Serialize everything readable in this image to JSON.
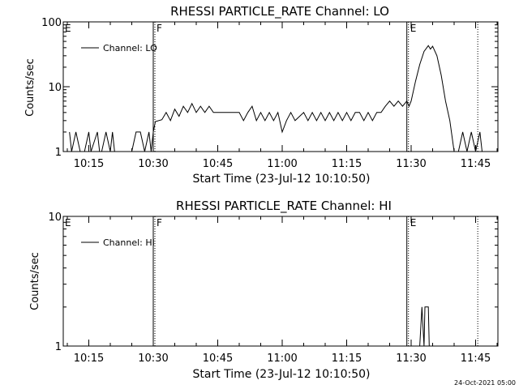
{
  "chart_data": [
    {
      "type": "line",
      "title": "RHESSI PARTICLE_RATE Channel: LO",
      "xlabel": "Start Time (23-Jul-12 10:10:50)",
      "ylabel": "Counts/sec",
      "y_scale": "log",
      "ylim": [
        1,
        100
      ],
      "xlim": [
        "10:10",
        "11:50"
      ],
      "y_ticks": [
        {
          "value": 1,
          "label": "1"
        },
        {
          "value": 10,
          "label": "10"
        },
        {
          "value": 100,
          "label": "100"
        }
      ],
      "x_ticks": [
        {
          "value": "10:15",
          "label": "10:15"
        },
        {
          "value": "10:30",
          "label": "10:30"
        },
        {
          "value": "10:45",
          "label": "10:45"
        },
        {
          "value": "11:00",
          "label": "11:00"
        },
        {
          "value": "11:15",
          "label": "11:15"
        },
        {
          "value": "11:30",
          "label": "11:30"
        },
        {
          "value": "11:45",
          "label": "11:45"
        }
      ],
      "legend": {
        "placement": "top-left",
        "label": "Channel: LO"
      },
      "markers": [
        {
          "label": "E",
          "time": "10:10",
          "style": "none"
        },
        {
          "label": "F",
          "time": "10:30",
          "style": "solid"
        },
        {
          "label": "E",
          "time": "11:29",
          "style": "solid"
        },
        {
          "label": "",
          "time": "11:45.5",
          "style": "dotted"
        }
      ],
      "series": [
        {
          "name": "Channel: LO",
          "points": [
            [
              "10:10.5",
              2
            ],
            [
              "10:11",
              1
            ],
            [
              "10:12",
              2
            ],
            [
              "10:13",
              1
            ],
            [
              "10:14",
              1
            ],
            [
              "10:15",
              2
            ],
            [
              "10:15.5",
              1
            ],
            [
              "10:17",
              2
            ],
            [
              "10:17.5",
              1
            ],
            [
              "10:18",
              1
            ],
            [
              "10:19",
              2
            ],
            [
              "10:20",
              1
            ],
            [
              "10:20.5",
              2
            ],
            [
              "10:21",
              1
            ],
            [
              "10:25",
              1
            ],
            [
              "10:26",
              2
            ],
            [
              "10:27",
              2
            ],
            [
              "10:28",
              1
            ],
            [
              "10:29",
              2
            ],
            [
              "10:29.5",
              1
            ],
            [
              "10:30",
              2
            ],
            [
              "10:30.5",
              2.9
            ],
            [
              "10:32",
              3.1
            ],
            [
              "10:33",
              4
            ],
            [
              "10:34",
              3
            ],
            [
              "10:35",
              4.5
            ],
            [
              "10:36",
              3.5
            ],
            [
              "10:37",
              5
            ],
            [
              "10:38",
              4
            ],
            [
              "10:39",
              5.5
            ],
            [
              "10:40",
              4
            ],
            [
              "10:41",
              5
            ],
            [
              "10:42",
              4
            ],
            [
              "10:43",
              5
            ],
            [
              "10:44",
              4
            ],
            [
              "10:45",
              4
            ],
            [
              "10:50",
              4
            ],
            [
              "10:51",
              3
            ],
            [
              "10:52",
              4
            ],
            [
              "10:53",
              5
            ],
            [
              "10:54",
              3
            ],
            [
              "10:55",
              4
            ],
            [
              "10:56",
              3
            ],
            [
              "10:57",
              4
            ],
            [
              "10:58",
              3
            ],
            [
              "10:59",
              4
            ],
            [
              "11:00",
              2
            ],
            [
              "11:01",
              3
            ],
            [
              "11:02",
              4
            ],
            [
              "11:03",
              3
            ],
            [
              "11:05",
              4
            ],
            [
              "11:06",
              3
            ],
            [
              "11:07",
              4
            ],
            [
              "11:08",
              3
            ],
            [
              "11:09",
              4
            ],
            [
              "11:10",
              3
            ],
            [
              "11:11",
              4
            ],
            [
              "11:12",
              3
            ],
            [
              "11:13",
              4
            ],
            [
              "11:14",
              3
            ],
            [
              "11:15",
              4
            ],
            [
              "11:16",
              3
            ],
            [
              "11:17",
              4
            ],
            [
              "11:18",
              4
            ],
            [
              "11:19",
              3
            ],
            [
              "11:20",
              4
            ],
            [
              "11:21",
              3
            ],
            [
              "11:22",
              4
            ],
            [
              "11:23",
              4
            ],
            [
              "11:24",
              5
            ],
            [
              "11:25",
              6
            ],
            [
              "11:26",
              5
            ],
            [
              "11:27",
              6
            ],
            [
              "11:28",
              5
            ],
            [
              "11:29",
              6
            ],
            [
              "11:29.5",
              5
            ],
            [
              "11:30",
              6
            ],
            [
              "11:31",
              12
            ],
            [
              "11:32",
              22
            ],
            [
              "11:33",
              35
            ],
            [
              "11:34",
              43
            ],
            [
              "11:34.5",
              38
            ],
            [
              "11:35",
              42
            ],
            [
              "11:36",
              30
            ],
            [
              "11:37",
              15
            ],
            [
              "11:38",
              6
            ],
            [
              "11:39",
              3
            ],
            [
              "11:40",
              1
            ],
            [
              "11:41",
              1
            ],
            [
              "11:42",
              2
            ],
            [
              "11:43",
              1
            ],
            [
              "11:44",
              2
            ],
            [
              "11:45",
              1
            ],
            [
              "11:46",
              2
            ],
            [
              "11:46.5",
              1
            ]
          ]
        }
      ]
    },
    {
      "type": "line",
      "title": "RHESSI PARTICLE_RATE Channel: HI",
      "xlabel": "Start Time (23-Jul-12 10:10:50)",
      "ylabel": "Counts/sec",
      "y_scale": "log",
      "ylim": [
        1,
        10
      ],
      "xlim": [
        "10:10",
        "11:50"
      ],
      "y_ticks": [
        {
          "value": 1,
          "label": "1"
        },
        {
          "value": 10,
          "label": "10"
        }
      ],
      "x_ticks": [
        {
          "value": "10:15",
          "label": "10:15"
        },
        {
          "value": "10:30",
          "label": "10:30"
        },
        {
          "value": "10:45",
          "label": "10:45"
        },
        {
          "value": "11:00",
          "label": "11:00"
        },
        {
          "value": "11:15",
          "label": "11:15"
        },
        {
          "value": "11:30",
          "label": "11:30"
        },
        {
          "value": "11:45",
          "label": "11:45"
        }
      ],
      "legend": {
        "placement": "top-left",
        "label": "Channel: HI"
      },
      "markers": [
        {
          "label": "E",
          "time": "10:10",
          "style": "none"
        },
        {
          "label": "F",
          "time": "10:30",
          "style": "solid"
        },
        {
          "label": "E",
          "time": "11:29",
          "style": "solid"
        },
        {
          "label": "",
          "time": "11:45.5",
          "style": "dotted"
        }
      ],
      "series": [
        {
          "name": "Channel: HI",
          "points": [
            [
              "11:32",
              1
            ],
            [
              "11:32.5",
              2
            ],
            [
              "11:33",
              1
            ],
            [
              "11:33.2",
              2
            ],
            [
              "11:34",
              2
            ],
            [
              "11:34.2",
              1
            ]
          ]
        }
      ]
    }
  ],
  "footer": {
    "timestamp": "24-Oct-2021 05:00"
  }
}
